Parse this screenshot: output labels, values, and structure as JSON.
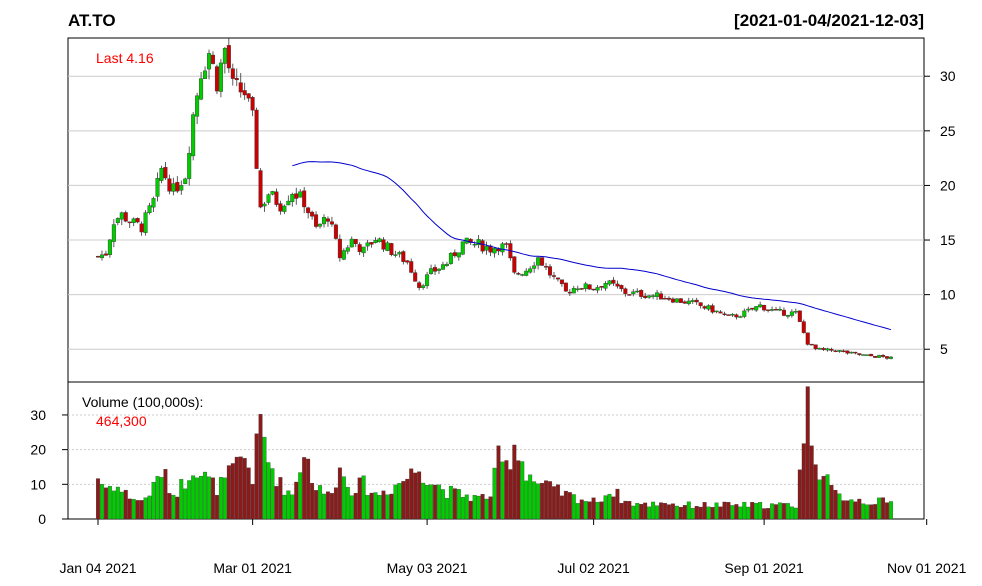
{
  "chart_data": {
    "type": "candlestick",
    "title": "AT.TO",
    "date_range": "[2021-01-04/2021-12-03]",
    "last_label": "Last 4.16",
    "x_tick_labels": [
      "Jan 04 2021",
      "Mar 01 2021",
      "May 03 2021",
      "Jul 02 2021",
      "Sep 01 2021",
      "Nov 01 2021"
    ],
    "x_tick_index": [
      0,
      39,
      83,
      125,
      168,
      209
    ],
    "price_axis": {
      "ticks": [
        5,
        10,
        15,
        20,
        25,
        30
      ],
      "ylim": [
        2.0,
        33.5
      ],
      "grid": true,
      "side": "right"
    },
    "volume_axis": {
      "ticks": [
        0,
        10,
        20,
        30
      ],
      "ylim": [
        0,
        39.5
      ],
      "grid": true,
      "side": "left"
    },
    "volume_label": "Volume (100,000s):",
    "volume_last_label": "464,300",
    "colors": {
      "up": "#00cc00",
      "down": "#cc0000",
      "volume_down": "#8b1a1a",
      "ma": "#0000cc",
      "last": "#ff0000",
      "grid": "#cccccc",
      "axis": "#000000"
    },
    "moving_average_start_index": 49,
    "anchors": [
      [
        0,
        13.5,
        12
      ],
      [
        2,
        13.8,
        9
      ],
      [
        4,
        16.8,
        10
      ],
      [
        6,
        17.3,
        8
      ],
      [
        9,
        16.5,
        6
      ],
      [
        11,
        16.2,
        5
      ],
      [
        14,
        18.5,
        9
      ],
      [
        16,
        21.5,
        14
      ],
      [
        19,
        19.5,
        7
      ],
      [
        22,
        21,
        11
      ],
      [
        24,
        26.5,
        16
      ],
      [
        26,
        30.5,
        13
      ],
      [
        28,
        32.2,
        11
      ],
      [
        30,
        29.5,
        9
      ],
      [
        32,
        32.5,
        11
      ],
      [
        34,
        29,
        14
      ],
      [
        37,
        28.5,
        18
      ],
      [
        39,
        26,
        12
      ],
      [
        41,
        18,
        28
      ],
      [
        43,
        19.3,
        17
      ],
      [
        46,
        18.2,
        10
      ],
      [
        49,
        19.5,
        7
      ],
      [
        52,
        18.5,
        20
      ],
      [
        55,
        16,
        9
      ],
      [
        58,
        17.2,
        7
      ],
      [
        61,
        13.5,
        14
      ],
      [
        64,
        15,
        9
      ],
      [
        67,
        14,
        10
      ],
      [
        70,
        15.2,
        7
      ],
      [
        74,
        14,
        9
      ],
      [
        78,
        13,
        12
      ],
      [
        81,
        10.8,
        15
      ],
      [
        84,
        12,
        11
      ],
      [
        88,
        12.9,
        8
      ],
      [
        92,
        14.7,
        7
      ],
      [
        96,
        14.6,
        6
      ],
      [
        99,
        14.2,
        7
      ],
      [
        101,
        14.5,
        17
      ],
      [
        103,
        14.3,
        15
      ],
      [
        105,
        11.8,
        22
      ],
      [
        108,
        12.3,
        14
      ],
      [
        111,
        13.4,
        10
      ],
      [
        114,
        11.9,
        9
      ],
      [
        118,
        10.2,
        7
      ],
      [
        121,
        10.8,
        6
      ],
      [
        125,
        10.6,
        5
      ],
      [
        128,
        11.1,
        7
      ],
      [
        130,
        10.8,
        8
      ],
      [
        133,
        10.2,
        5
      ],
      [
        138,
        10,
        4
      ],
      [
        143,
        9.8,
        5
      ],
      [
        146,
        9.5,
        4
      ],
      [
        150,
        9.2,
        4
      ],
      [
        155,
        8.6,
        4
      ],
      [
        159,
        7.9,
        4
      ],
      [
        163,
        8.3,
        4
      ],
      [
        167,
        9,
        4
      ],
      [
        171,
        8.4,
        4
      ],
      [
        176,
        8.3,
        4
      ],
      [
        179,
        5.6,
        33
      ],
      [
        181,
        5,
        18
      ],
      [
        183,
        4.9,
        12
      ],
      [
        186,
        4.9,
        7
      ],
      [
        190,
        4.6,
        6
      ],
      [
        194,
        4.4,
        5
      ],
      [
        198,
        4.3,
        5
      ],
      [
        200,
        4.16,
        4.6
      ]
    ],
    "n_bars": 201
  }
}
